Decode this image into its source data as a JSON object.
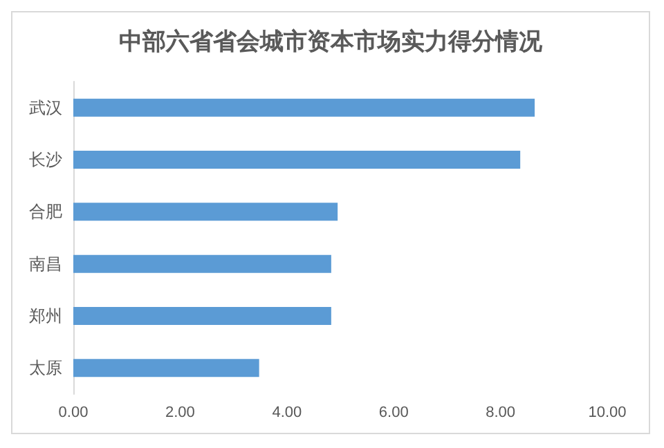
{
  "chart_data": {
    "type": "bar",
    "orientation": "horizontal",
    "title": "中部六省省会城市资本市场实力得分情况",
    "categories": [
      "武汉",
      "长沙",
      "合肥",
      "南昌",
      "郑州",
      "太原"
    ],
    "values": [
      8.64,
      8.37,
      4.95,
      4.83,
      4.83,
      3.48
    ],
    "color": "#5b9bd5",
    "xlim": [
      0,
      10
    ],
    "xticks": [
      {
        "value": 0,
        "label": "0.00"
      },
      {
        "value": 2,
        "label": "2.00"
      },
      {
        "value": 4,
        "label": "4.00"
      },
      {
        "value": 6,
        "label": "6.00"
      },
      {
        "value": 8,
        "label": "8.00"
      },
      {
        "value": 10,
        "label": "10.00"
      }
    ],
    "grid": false
  }
}
